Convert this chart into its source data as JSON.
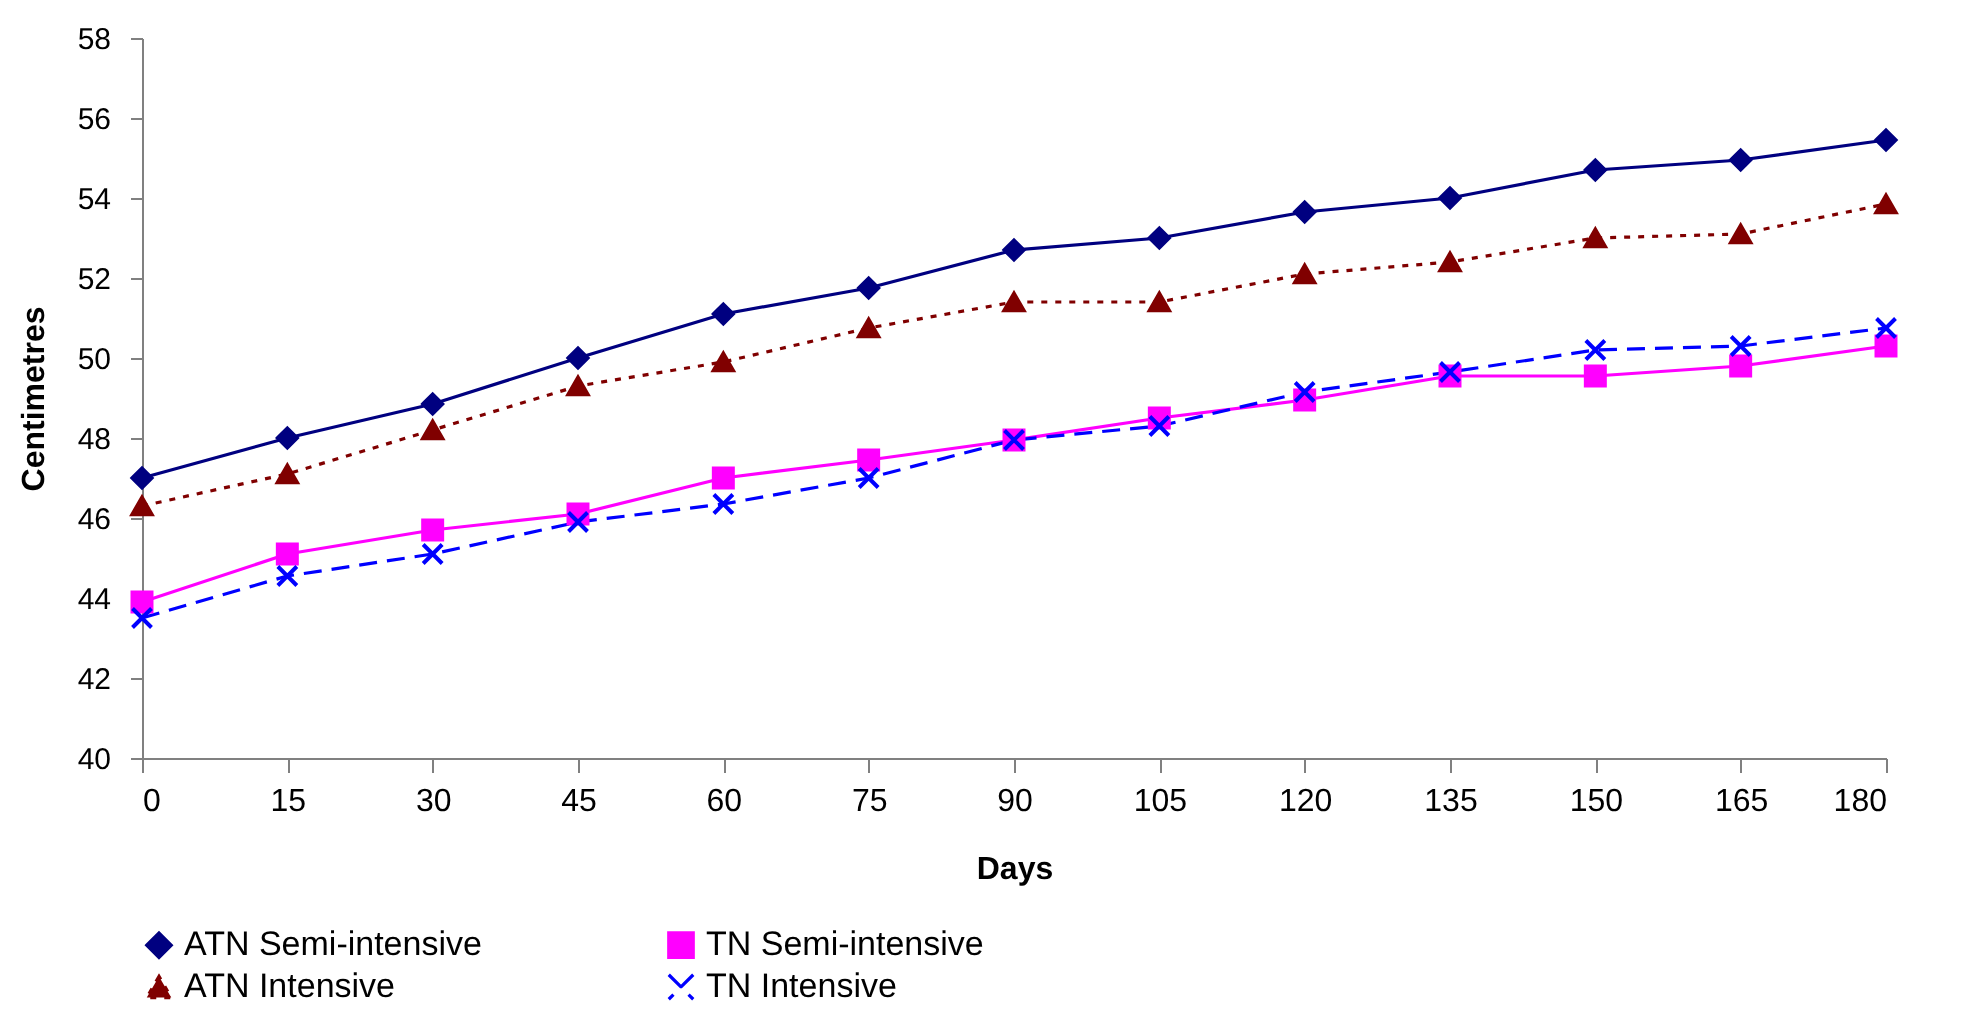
{
  "chart_data": {
    "type": "line",
    "xlabel": "Days",
    "ylabel": "Centimetres",
    "x": [
      0,
      15,
      30,
      45,
      60,
      75,
      90,
      105,
      120,
      135,
      150,
      165,
      180
    ],
    "xlim": [
      0,
      180
    ],
    "xticks": [
      0,
      15,
      30,
      45,
      60,
      75,
      90,
      105,
      120,
      135,
      150,
      165,
      180
    ],
    "ylim": [
      40,
      58
    ],
    "yticks": [
      40,
      42,
      44,
      46,
      48,
      50,
      52,
      54,
      56,
      58
    ],
    "grid": false,
    "legend": "bottom",
    "series": [
      {
        "name": "ATN Semi-intensive",
        "color": "#000080",
        "marker": "diamond",
        "line_style": "solid",
        "values": [
          47.0,
          48.0,
          48.85,
          50.0,
          51.1,
          51.75,
          52.7,
          53.0,
          53.65,
          54.0,
          54.7,
          54.95,
          55.45
        ]
      },
      {
        "name": "TN Semi-intensive",
        "color": "#ff00ff",
        "marker": "square",
        "line_style": "solid",
        "values": [
          43.9,
          45.1,
          45.7,
          46.1,
          47.0,
          47.45,
          47.95,
          48.5,
          48.95,
          49.55,
          49.55,
          49.8,
          50.3
        ]
      },
      {
        "name": "ATN Intensive",
        "color": "#800000",
        "marker": "triangle",
        "line_style": "dotted",
        "values": [
          46.3,
          47.1,
          48.2,
          49.3,
          49.9,
          50.75,
          51.4,
          51.4,
          52.1,
          52.4,
          53.0,
          53.1,
          53.85
        ]
      },
      {
        "name": "TN Intensive",
        "color": "#0000ff",
        "marker": "cross",
        "line_style": "dashed",
        "values": [
          43.5,
          44.55,
          45.1,
          45.9,
          46.35,
          47.0,
          47.95,
          48.3,
          49.15,
          49.65,
          50.2,
          50.3,
          50.75
        ]
      }
    ]
  }
}
